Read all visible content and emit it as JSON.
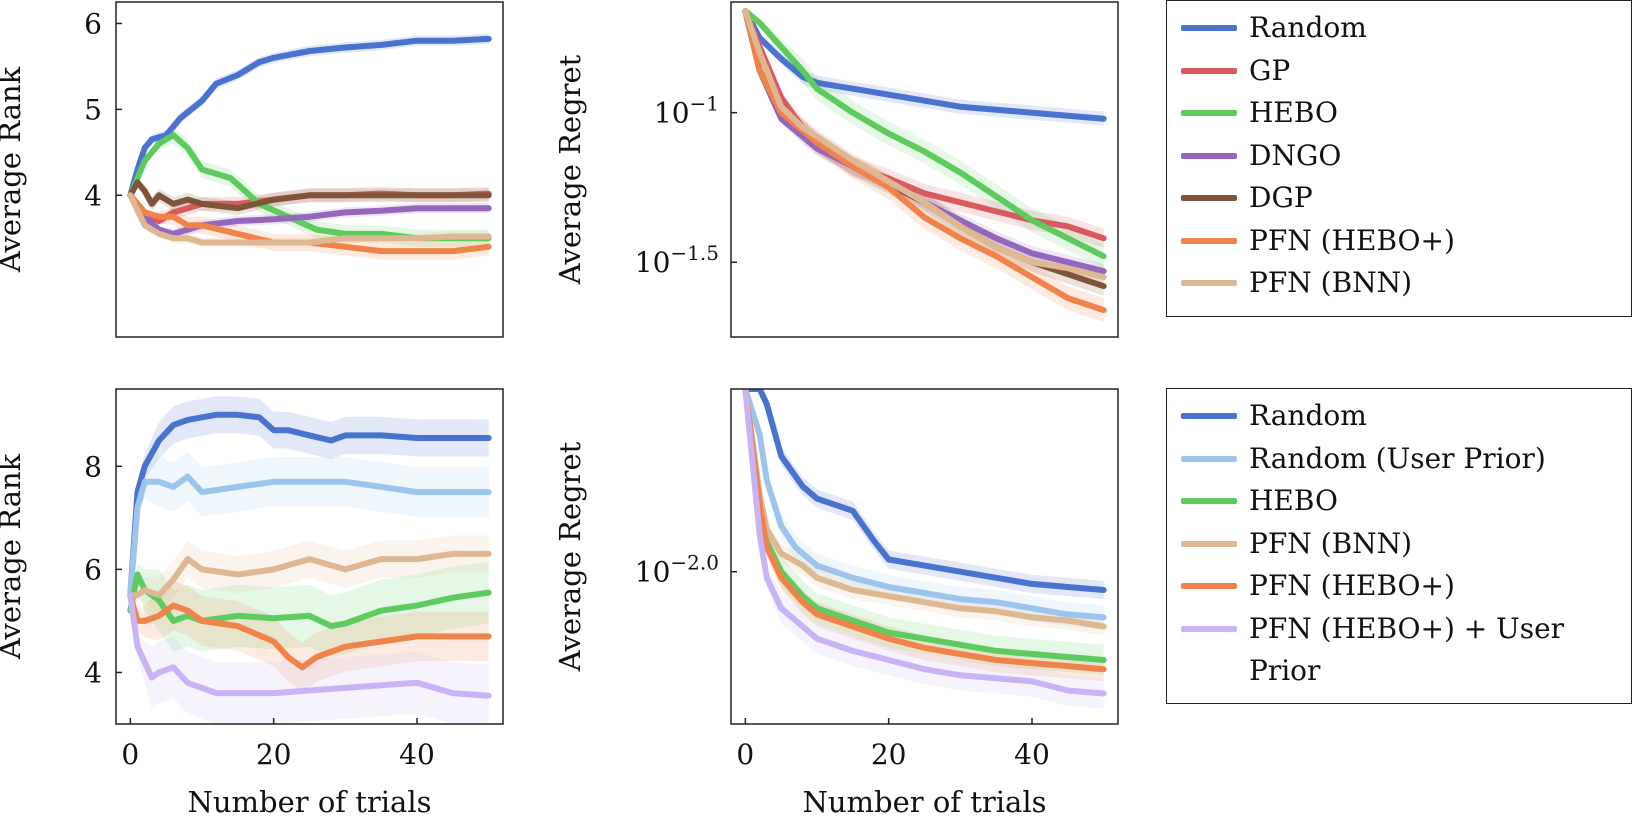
{
  "chart_data": [
    {
      "id": "top-rank",
      "type": "line",
      "xlabel": "",
      "ylabel": "Average Rank",
      "xlim": [
        -2,
        52
      ],
      "ylim": [
        2.35,
        6.25
      ],
      "yscale": "linear",
      "yticks": [
        {
          "v": 4,
          "label": "4"
        },
        {
          "v": 5,
          "label": "5"
        },
        {
          "v": 6,
          "label": "6"
        }
      ],
      "xticks": [],
      "series": [
        {
          "name": "Random",
          "color": "#4A72CF",
          "x": [
            0,
            1,
            2,
            3,
            5,
            7,
            10,
            12,
            15,
            18,
            20,
            25,
            30,
            35,
            40,
            45,
            50
          ],
          "values": [
            4.0,
            4.3,
            4.55,
            4.65,
            4.7,
            4.9,
            5.1,
            5.3,
            5.4,
            5.55,
            5.6,
            5.68,
            5.72,
            5.75,
            5.8,
            5.8,
            5.82
          ]
        },
        {
          "name": "GP",
          "color": "#D95A5E",
          "x": [
            0,
            2,
            4,
            6,
            8,
            10,
            15,
            20,
            25,
            30,
            35,
            40,
            45,
            50
          ],
          "values": [
            4.0,
            3.8,
            3.7,
            3.8,
            3.85,
            3.9,
            3.9,
            3.95,
            4.0,
            4.0,
            4.02,
            4.0,
            4.0,
            4.02
          ]
        },
        {
          "name": "HEBO",
          "color": "#5DCB5E",
          "x": [
            0,
            2,
            4,
            6,
            8,
            10,
            14,
            18,
            22,
            26,
            30,
            35,
            40,
            45,
            50
          ],
          "values": [
            4.0,
            4.4,
            4.6,
            4.7,
            4.55,
            4.3,
            4.2,
            3.9,
            3.75,
            3.6,
            3.55,
            3.55,
            3.5,
            3.5,
            3.5
          ]
        },
        {
          "name": "DNGO",
          "color": "#9467BD",
          "x": [
            0,
            2,
            4,
            6,
            8,
            10,
            15,
            20,
            25,
            30,
            35,
            40,
            45,
            50
          ],
          "values": [
            4.0,
            3.75,
            3.6,
            3.55,
            3.6,
            3.65,
            3.7,
            3.72,
            3.75,
            3.8,
            3.82,
            3.85,
            3.85,
            3.85
          ]
        },
        {
          "name": "DGP",
          "color": "#7F5539",
          "x": [
            0,
            1,
            2,
            3,
            4,
            6,
            8,
            10,
            15,
            20,
            25,
            30,
            35,
            40,
            45,
            50
          ],
          "values": [
            4.0,
            4.15,
            4.05,
            3.9,
            4.0,
            3.9,
            3.95,
            3.9,
            3.85,
            3.95,
            4.0,
            4.0,
            4.0,
            4.0,
            4.0,
            4.0
          ]
        },
        {
          "name": "PFN (HEBO+)",
          "color": "#F0834A",
          "x": [
            0,
            2,
            4,
            6,
            8,
            10,
            15,
            20,
            25,
            30,
            35,
            40,
            45,
            50
          ],
          "values": [
            4.0,
            3.8,
            3.75,
            3.75,
            3.65,
            3.65,
            3.55,
            3.45,
            3.45,
            3.4,
            3.35,
            3.35,
            3.35,
            3.4
          ]
        },
        {
          "name": "PFN (BNN)",
          "color": "#DDB892",
          "x": [
            0,
            2,
            4,
            6,
            8,
            10,
            15,
            20,
            25,
            30,
            35,
            40,
            45,
            50
          ],
          "values": [
            4.0,
            3.65,
            3.55,
            3.5,
            3.5,
            3.45,
            3.45,
            3.45,
            3.45,
            3.5,
            3.5,
            3.5,
            3.52,
            3.52
          ]
        }
      ]
    },
    {
      "id": "top-regret",
      "type": "line",
      "xlabel": "",
      "ylabel": "Average Regret",
      "xlim": [
        -2,
        52
      ],
      "ylim": [
        -1.75,
        -0.63
      ],
      "yscale": "log10",
      "yticks": [
        {
          "v": -1.5,
          "base": "10",
          "exp": "−1.5"
        },
        {
          "v": -1.0,
          "base": "10",
          "exp": "−1"
        }
      ],
      "xticks": [],
      "series": [
        {
          "name": "Random",
          "color": "#4A72CF",
          "x": [
            0,
            2,
            5,
            8,
            10,
            15,
            20,
            25,
            30,
            35,
            40,
            45,
            50
          ],
          "values": [
            -0.66,
            -0.75,
            -0.82,
            -0.88,
            -0.9,
            -0.92,
            -0.94,
            -0.96,
            -0.98,
            -0.99,
            -1.0,
            -1.01,
            -1.02
          ]
        },
        {
          "name": "GP",
          "color": "#D95A5E",
          "x": [
            0,
            2,
            5,
            8,
            10,
            15,
            20,
            25,
            30,
            35,
            40,
            45,
            50
          ],
          "values": [
            -0.66,
            -0.78,
            -0.95,
            -1.05,
            -1.1,
            -1.18,
            -1.22,
            -1.27,
            -1.3,
            -1.33,
            -1.36,
            -1.38,
            -1.42
          ]
        },
        {
          "name": "HEBO",
          "color": "#5DCB5E",
          "x": [
            0,
            2,
            5,
            8,
            10,
            15,
            20,
            25,
            30,
            35,
            40,
            45,
            50
          ],
          "values": [
            -0.66,
            -0.7,
            -0.78,
            -0.86,
            -0.92,
            -1.0,
            -1.07,
            -1.13,
            -1.2,
            -1.28,
            -1.36,
            -1.42,
            -1.48
          ]
        },
        {
          "name": "DNGO",
          "color": "#9467BD",
          "x": [
            0,
            2,
            5,
            8,
            10,
            15,
            20,
            25,
            30,
            35,
            40,
            45,
            50
          ],
          "values": [
            -0.66,
            -0.86,
            -1.02,
            -1.08,
            -1.12,
            -1.18,
            -1.24,
            -1.3,
            -1.36,
            -1.42,
            -1.47,
            -1.5,
            -1.53
          ]
        },
        {
          "name": "DGP",
          "color": "#7F5539",
          "x": [
            0,
            2,
            5,
            8,
            10,
            15,
            20,
            25,
            30,
            35,
            40,
            45,
            50
          ],
          "values": [
            -0.66,
            -0.86,
            -0.98,
            -1.06,
            -1.1,
            -1.18,
            -1.24,
            -1.3,
            -1.38,
            -1.45,
            -1.5,
            -1.54,
            -1.58
          ]
        },
        {
          "name": "PFN (HEBO+)",
          "color": "#F0834A",
          "x": [
            0,
            2,
            5,
            8,
            10,
            15,
            20,
            25,
            30,
            35,
            40,
            45,
            50
          ],
          "values": [
            -0.66,
            -0.86,
            -1.0,
            -1.06,
            -1.1,
            -1.18,
            -1.25,
            -1.35,
            -1.42,
            -1.48,
            -1.55,
            -1.62,
            -1.66
          ]
        },
        {
          "name": "PFN (BNN)",
          "color": "#DDB892",
          "x": [
            0,
            2,
            5,
            8,
            10,
            15,
            20,
            25,
            30,
            35,
            40,
            45,
            50
          ],
          "values": [
            -0.66,
            -0.8,
            -0.98,
            -1.05,
            -1.08,
            -1.16,
            -1.23,
            -1.3,
            -1.38,
            -1.45,
            -1.5,
            -1.52,
            -1.55
          ]
        }
      ]
    },
    {
      "id": "bottom-rank",
      "type": "line",
      "xlabel": "Number of trials",
      "ylabel": "Average Rank",
      "xlim": [
        -2,
        52
      ],
      "ylim": [
        3.0,
        9.5
      ],
      "yscale": "linear",
      "yticks": [
        {
          "v": 4,
          "label": "4"
        },
        {
          "v": 6,
          "label": "6"
        },
        {
          "v": 8,
          "label": "8"
        }
      ],
      "xticks": [
        {
          "v": 0,
          "label": "0"
        },
        {
          "v": 20,
          "label": "20"
        },
        {
          "v": 40,
          "label": "40"
        }
      ],
      "series": [
        {
          "name": "Random",
          "color": "#4A72CF",
          "x": [
            0,
            1,
            2,
            4,
            6,
            8,
            10,
            12,
            15,
            18,
            20,
            22,
            25,
            28,
            30,
            35,
            40,
            45,
            50
          ],
          "values": [
            5.5,
            7.5,
            8.0,
            8.5,
            8.8,
            8.9,
            8.95,
            9.0,
            9.0,
            8.95,
            8.7,
            8.7,
            8.6,
            8.5,
            8.6,
            8.6,
            8.55,
            8.55,
            8.55
          ]
        },
        {
          "name": "Random (User Prior)",
          "color": "#9CC5EE",
          "x": [
            0,
            1,
            2,
            4,
            6,
            8,
            10,
            15,
            20,
            25,
            30,
            35,
            40,
            45,
            50
          ],
          "values": [
            5.5,
            7.2,
            7.7,
            7.7,
            7.6,
            7.8,
            7.5,
            7.6,
            7.7,
            7.7,
            7.7,
            7.6,
            7.5,
            7.5,
            7.5
          ]
        },
        {
          "name": "HEBO",
          "color": "#5DCB5E",
          "x": [
            0,
            1,
            2,
            4,
            6,
            8,
            10,
            15,
            20,
            25,
            28,
            30,
            35,
            40,
            45,
            50
          ],
          "values": [
            5.2,
            5.9,
            5.6,
            5.4,
            5.0,
            5.1,
            5.0,
            5.1,
            5.05,
            5.1,
            4.9,
            4.95,
            5.2,
            5.3,
            5.45,
            5.55
          ]
        },
        {
          "name": "PFN (BNN)",
          "color": "#DDB892",
          "x": [
            0,
            1,
            2,
            4,
            6,
            8,
            10,
            15,
            20,
            25,
            30,
            35,
            40,
            45,
            50
          ],
          "values": [
            5.5,
            5.5,
            5.6,
            5.5,
            5.8,
            6.2,
            6.0,
            5.9,
            6.0,
            6.2,
            6.0,
            6.2,
            6.2,
            6.3,
            6.3
          ]
        },
        {
          "name": "PFN (HEBO+)",
          "color": "#F0834A",
          "x": [
            0,
            1,
            2,
            4,
            6,
            8,
            10,
            15,
            20,
            22,
            24,
            26,
            30,
            35,
            40,
            45,
            50
          ],
          "values": [
            5.5,
            5.0,
            5.0,
            5.1,
            5.3,
            5.2,
            5.0,
            4.9,
            4.6,
            4.3,
            4.1,
            4.3,
            4.5,
            4.6,
            4.7,
            4.7,
            4.7
          ]
        },
        {
          "name": "PFN (HEBO+) + User Prior",
          "color": "#C9B3F5",
          "x": [
            0,
            1,
            2,
            3,
            4,
            6,
            8,
            10,
            12,
            15,
            20,
            25,
            30,
            35,
            40,
            45,
            50
          ],
          "values": [
            5.5,
            4.5,
            4.2,
            3.9,
            4.0,
            4.1,
            3.8,
            3.7,
            3.6,
            3.6,
            3.6,
            3.65,
            3.7,
            3.75,
            3.8,
            3.6,
            3.55
          ]
        }
      ]
    },
    {
      "id": "bottom-regret",
      "type": "line",
      "xlabel": "Number of trials",
      "ylabel": "Average Regret",
      "xlim": [
        -2,
        52
      ],
      "ylim": [
        -2.5,
        -1.4
      ],
      "yscale": "log10",
      "yticks": [
        {
          "v": -2.0,
          "base": "10",
          "exp": "−2.0"
        }
      ],
      "xticks": [
        {
          "v": 0,
          "label": "0"
        },
        {
          "v": 20,
          "label": "20"
        },
        {
          "v": 40,
          "label": "40"
        }
      ],
      "series": [
        {
          "name": "Random",
          "color": "#4A72CF",
          "x": [
            0,
            2,
            3,
            5,
            8,
            10,
            15,
            18,
            20,
            25,
            30,
            35,
            40,
            45,
            50
          ],
          "values": [
            -1.4,
            -1.4,
            -1.45,
            -1.62,
            -1.72,
            -1.76,
            -1.8,
            -1.9,
            -1.96,
            -1.98,
            -2.0,
            -2.02,
            -2.04,
            -2.05,
            -2.06
          ]
        },
        {
          "name": "Random (User Prior)",
          "color": "#9CC5EE",
          "x": [
            0,
            2,
            3,
            5,
            7,
            10,
            15,
            20,
            25,
            30,
            35,
            40,
            45,
            50
          ],
          "values": [
            -1.4,
            -1.55,
            -1.7,
            -1.85,
            -1.92,
            -1.98,
            -2.02,
            -2.05,
            -2.07,
            -2.09,
            -2.1,
            -2.12,
            -2.14,
            -2.15
          ]
        },
        {
          "name": "HEBO",
          "color": "#5DCB5E",
          "x": [
            0,
            2,
            3,
            5,
            8,
            10,
            15,
            20,
            25,
            30,
            35,
            40,
            45,
            50
          ],
          "values": [
            -1.4,
            -1.75,
            -1.9,
            -2.0,
            -2.08,
            -2.12,
            -2.16,
            -2.2,
            -2.22,
            -2.24,
            -2.26,
            -2.27,
            -2.28,
            -2.29
          ]
        },
        {
          "name": "PFN (BNN)",
          "color": "#DDB892",
          "x": [
            0,
            2,
            3,
            5,
            8,
            10,
            15,
            20,
            25,
            30,
            35,
            40,
            45,
            50
          ],
          "values": [
            -1.4,
            -1.75,
            -1.86,
            -1.94,
            -1.98,
            -2.02,
            -2.06,
            -2.08,
            -2.1,
            -2.12,
            -2.13,
            -2.15,
            -2.16,
            -2.18
          ]
        },
        {
          "name": "PFN (HEBO+)",
          "color": "#F0834A",
          "x": [
            0,
            2,
            3,
            5,
            8,
            10,
            15,
            20,
            25,
            30,
            35,
            40,
            45,
            50
          ],
          "values": [
            -1.4,
            -1.78,
            -1.92,
            -2.02,
            -2.1,
            -2.14,
            -2.18,
            -2.22,
            -2.25,
            -2.27,
            -2.29,
            -2.3,
            -2.31,
            -2.32
          ]
        },
        {
          "name": "PFN (HEBO+) + User Prior",
          "color": "#C9B3F5",
          "x": [
            0,
            2,
            3,
            5,
            8,
            10,
            15,
            20,
            25,
            30,
            35,
            40,
            45,
            50
          ],
          "values": [
            -1.4,
            -1.88,
            -2.02,
            -2.12,
            -2.18,
            -2.22,
            -2.26,
            -2.29,
            -2.32,
            -2.34,
            -2.35,
            -2.36,
            -2.39,
            -2.4
          ]
        }
      ]
    }
  ],
  "legends": {
    "top": [
      {
        "label": "Random",
        "color": "#4A72CF"
      },
      {
        "label": "GP",
        "color": "#D95A5E"
      },
      {
        "label": "HEBO",
        "color": "#5DCB5E"
      },
      {
        "label": "DNGO",
        "color": "#9467BD"
      },
      {
        "label": "DGP",
        "color": "#7F5539"
      },
      {
        "label": "PFN (HEBO+)",
        "color": "#F0834A"
      },
      {
        "label": "PFN (BNN)",
        "color": "#DDB892"
      }
    ],
    "bottom": [
      {
        "label": "Random",
        "color": "#4A72CF"
      },
      {
        "label": "Random (User Prior)",
        "color": "#9CC5EE"
      },
      {
        "label": "HEBO",
        "color": "#5DCB5E"
      },
      {
        "label": "PFN (BNN)",
        "color": "#DDB892"
      },
      {
        "label": "PFN (HEBO+)",
        "color": "#F0834A"
      },
      {
        "label": "PFN (HEBO+) + User Prior",
        "color": "#C9B3F5"
      }
    ]
  }
}
